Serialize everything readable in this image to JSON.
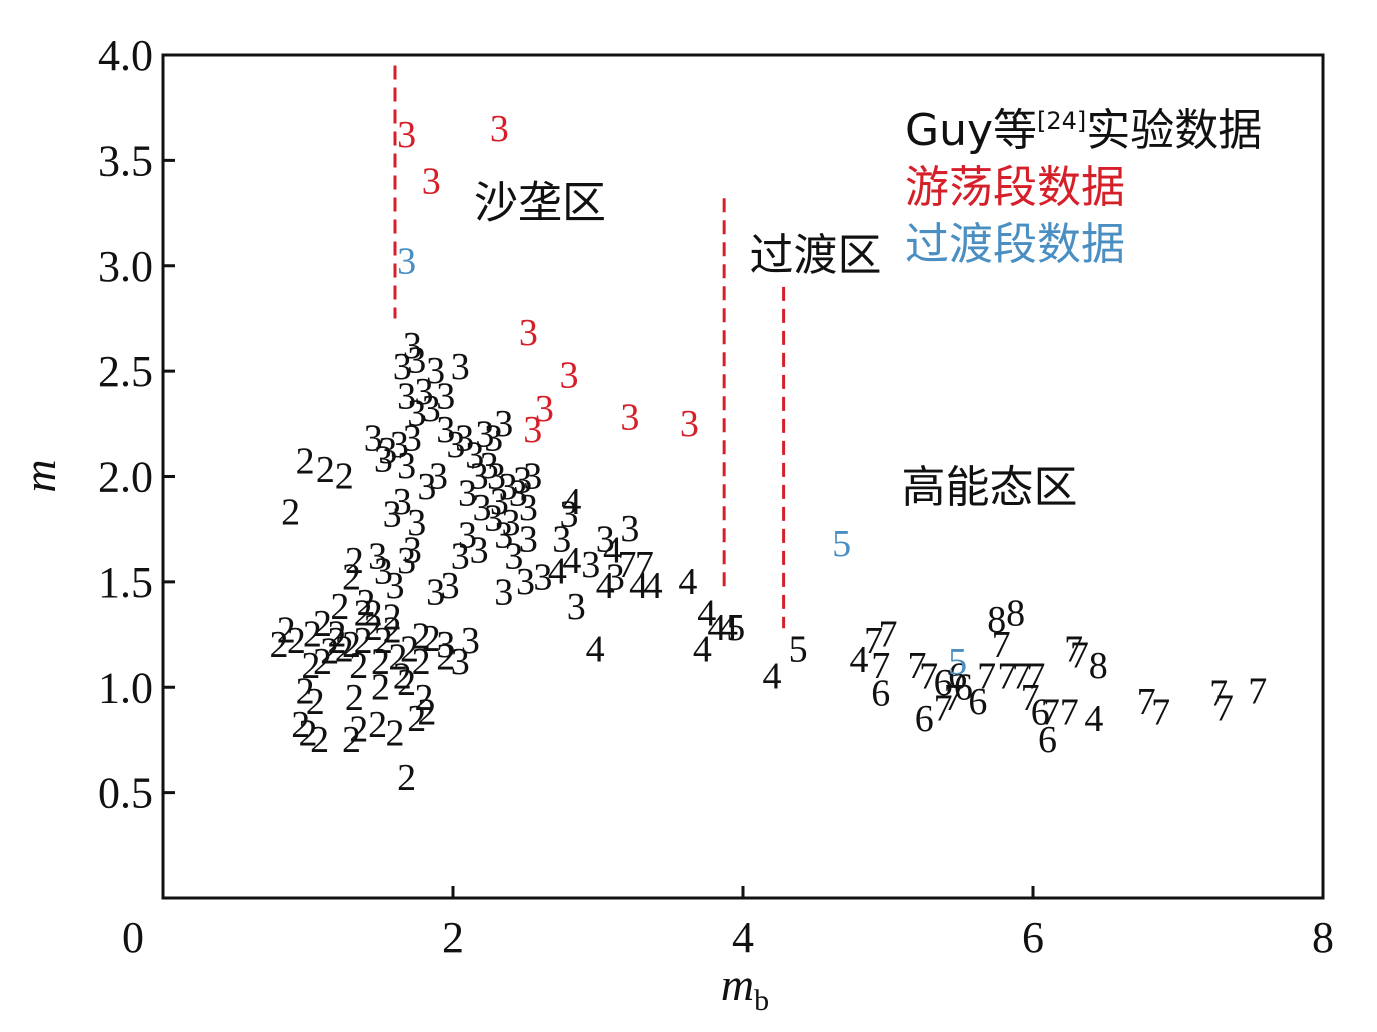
{
  "chart_data": {
    "type": "scatter",
    "xlabel": "m",
    "xlabel_sub": "b",
    "ylabel": "m",
    "xlim": [
      0,
      8
    ],
    "ylim": [
      0,
      4
    ],
    "x_ticks": [
      "0",
      "2",
      "4",
      "6",
      "8"
    ],
    "y_ticks": [
      "0.5",
      "1.0",
      "1.5",
      "2.0",
      "2.5",
      "3.0",
      "3.5",
      "4.0"
    ],
    "colors": {
      "black": "#111111",
      "red": "#d5202a",
      "blue": "#4a8ec2",
      "dash": "#d5202a"
    },
    "legend": [
      {
        "prefix": "Guy等",
        "sup": "[24]",
        "suffix": "实验数据",
        "color": "#111111"
      },
      {
        "prefix": "游荡段数据",
        "sup": "",
        "suffix": "",
        "color": "#d5202a"
      },
      {
        "prefix": "过渡段数据",
        "sup": "",
        "suffix": "",
        "color": "#4a8ec2"
      }
    ],
    "zones": [
      {
        "label": "沙垄区",
        "x": 2.6,
        "y": 3.3
      },
      {
        "label": "过渡区",
        "x": 4.5,
        "y": 3.05
      },
      {
        "label": "高能态区",
        "x": 5.7,
        "y": 1.95
      }
    ],
    "boundaries": [
      {
        "x": 1.6,
        "y_from": 2.75,
        "y_to": 3.95
      },
      {
        "x": 3.87,
        "y_from": 1.45,
        "y_to": 3.32
      },
      {
        "x": 4.28,
        "y_from": 1.28,
        "y_to": 2.9
      }
    ],
    "series": [
      {
        "name": "游荡段数据",
        "color": "#d5202a",
        "points": [
          [
            1.68,
            3.62,
            "3"
          ],
          [
            1.85,
            3.4,
            "3"
          ],
          [
            2.32,
            3.65,
            "3"
          ],
          [
            2.52,
            2.68,
            "3"
          ],
          [
            2.8,
            2.48,
            "3"
          ],
          [
            2.63,
            2.32,
            "3"
          ],
          [
            2.55,
            2.22,
            "3"
          ],
          [
            3.22,
            2.28,
            "3"
          ],
          [
            3.63,
            2.25,
            "3"
          ]
        ]
      },
      {
        "name": "过渡段数据",
        "color": "#4a8ec2",
        "points": [
          [
            1.68,
            3.02,
            "3"
          ],
          [
            4.68,
            1.68,
            "5"
          ],
          [
            5.48,
            1.12,
            "5"
          ]
        ]
      },
      {
        "name": "Guy等[24]实验数据",
        "color": "#111111",
        "points": [
          [
            0.98,
            2.07,
            "2"
          ],
          [
            0.88,
            1.83,
            "2"
          ],
          [
            1.12,
            2.03,
            "2"
          ],
          [
            1.25,
            2.0,
            "2"
          ],
          [
            1.32,
            1.6,
            "2"
          ],
          [
            1.3,
            1.52,
            "2"
          ],
          [
            1.4,
            1.4,
            "2"
          ],
          [
            1.38,
            1.35,
            "2"
          ],
          [
            0.85,
            1.27,
            "2"
          ],
          [
            0.92,
            1.22,
            "2"
          ],
          [
            1.03,
            1.25,
            "2"
          ],
          [
            1.1,
            1.3,
            "2"
          ],
          [
            1.15,
            1.17,
            "2"
          ],
          [
            1.2,
            1.25,
            "2"
          ],
          [
            1.25,
            1.18,
            "2"
          ],
          [
            1.3,
            1.2,
            "2"
          ],
          [
            1.38,
            1.22,
            "2"
          ],
          [
            1.45,
            1.28,
            "2"
          ],
          [
            1.52,
            1.22,
            "2"
          ],
          [
            1.58,
            1.27,
            "2"
          ],
          [
            1.62,
            1.14,
            "2"
          ],
          [
            1.7,
            1.18,
            "2"
          ],
          [
            1.78,
            1.24,
            "2"
          ],
          [
            0.8,
            1.2,
            "2"
          ],
          [
            1.02,
            1.1,
            "2"
          ],
          [
            1.1,
            1.12,
            "2"
          ],
          [
            1.35,
            1.1,
            "2"
          ],
          [
            1.5,
            1.12,
            "2"
          ],
          [
            1.65,
            1.05,
            "2"
          ],
          [
            1.78,
            1.12,
            "2"
          ],
          [
            1.85,
            1.23,
            "2"
          ],
          [
            1.95,
            1.14,
            "2"
          ],
          [
            0.98,
            0.98,
            "2"
          ],
          [
            1.05,
            0.93,
            "2"
          ],
          [
            1.32,
            0.95,
            "2"
          ],
          [
            1.5,
            1.0,
            "2"
          ],
          [
            1.68,
            1.02,
            "2"
          ],
          [
            1.8,
            0.95,
            "2"
          ],
          [
            1.82,
            0.88,
            "2"
          ],
          [
            0.95,
            0.82,
            "2"
          ],
          [
            1.0,
            0.78,
            "2"
          ],
          [
            1.08,
            0.75,
            "2"
          ],
          [
            1.3,
            0.75,
            "2"
          ],
          [
            1.35,
            0.8,
            "2"
          ],
          [
            1.48,
            0.82,
            "2"
          ],
          [
            1.6,
            0.78,
            "2"
          ],
          [
            1.75,
            0.85,
            "2"
          ],
          [
            1.68,
            0.57,
            "2"
          ],
          [
            1.58,
            1.33,
            "2"
          ],
          [
            1.45,
            1.35,
            "2"
          ],
          [
            1.2,
            1.22,
            "2"
          ],
          [
            1.22,
            1.38,
            "2"
          ],
          [
            1.72,
            2.62,
            "3"
          ],
          [
            1.75,
            2.55,
            "3"
          ],
          [
            1.65,
            2.52,
            "3"
          ],
          [
            1.8,
            2.4,
            "3"
          ],
          [
            1.88,
            2.5,
            "3"
          ],
          [
            2.05,
            2.52,
            "3"
          ],
          [
            1.95,
            2.38,
            "3"
          ],
          [
            1.85,
            2.32,
            "3"
          ],
          [
            1.75,
            2.3,
            "3"
          ],
          [
            1.68,
            2.38,
            "3"
          ],
          [
            1.72,
            2.18,
            "3"
          ],
          [
            1.63,
            2.15,
            "3"
          ],
          [
            1.55,
            2.12,
            "3"
          ],
          [
            1.45,
            2.18,
            "3"
          ],
          [
            1.52,
            2.08,
            "3"
          ],
          [
            1.68,
            2.05,
            "3"
          ],
          [
            1.82,
            1.95,
            "3"
          ],
          [
            1.9,
            2.0,
            "3"
          ],
          [
            1.65,
            1.88,
            "3"
          ],
          [
            1.58,
            1.82,
            "3"
          ],
          [
            1.75,
            1.78,
            "3"
          ],
          [
            1.72,
            1.65,
            "3"
          ],
          [
            1.68,
            1.6,
            "3"
          ],
          [
            1.52,
            1.55,
            "3"
          ],
          [
            1.6,
            1.48,
            "3"
          ],
          [
            1.88,
            1.45,
            "3"
          ],
          [
            1.95,
            1.2,
            "3"
          ],
          [
            2.05,
            1.12,
            "3"
          ],
          [
            2.12,
            1.22,
            "3"
          ],
          [
            1.95,
            2.22,
            "3"
          ],
          [
            2.02,
            2.15,
            "3"
          ],
          [
            2.08,
            2.18,
            "3"
          ],
          [
            2.15,
            2.1,
            "3"
          ],
          [
            2.22,
            2.2,
            "3"
          ],
          [
            2.28,
            2.18,
            "3"
          ],
          [
            2.35,
            2.25,
            "3"
          ],
          [
            2.25,
            2.05,
            "3"
          ],
          [
            2.18,
            2.0,
            "3"
          ],
          [
            2.3,
            2.0,
            "3"
          ],
          [
            2.38,
            1.95,
            "3"
          ],
          [
            2.1,
            1.92,
            "3"
          ],
          [
            2.2,
            1.85,
            "3"
          ],
          [
            2.32,
            1.88,
            "3"
          ],
          [
            2.45,
            1.92,
            "3"
          ],
          [
            2.52,
            1.85,
            "3"
          ],
          [
            2.4,
            1.78,
            "3"
          ],
          [
            2.28,
            1.8,
            "3"
          ],
          [
            2.1,
            1.72,
            "3"
          ],
          [
            2.05,
            1.62,
            "3"
          ],
          [
            2.18,
            1.65,
            "3"
          ],
          [
            2.35,
            1.72,
            "3"
          ],
          [
            2.42,
            1.62,
            "3"
          ],
          [
            2.52,
            1.7,
            "3"
          ],
          [
            2.35,
            1.45,
            "3"
          ],
          [
            2.5,
            1.5,
            "3"
          ],
          [
            2.62,
            1.52,
            "3"
          ],
          [
            2.85,
            1.38,
            "3"
          ],
          [
            2.75,
            1.7,
            "3"
          ],
          [
            2.8,
            1.82,
            "3"
          ],
          [
            2.95,
            1.58,
            "3"
          ],
          [
            3.05,
            1.7,
            "3"
          ],
          [
            3.22,
            1.75,
            "3"
          ],
          [
            3.12,
            1.52,
            "3"
          ],
          [
            2.48,
            1.98,
            "3"
          ],
          [
            2.55,
            2.0,
            "3"
          ],
          [
            1.98,
            1.48,
            "3"
          ],
          [
            1.48,
            1.62,
            "3"
          ],
          [
            2.82,
            1.88,
            "4"
          ],
          [
            2.72,
            1.55,
            "4"
          ],
          [
            2.82,
            1.6,
            "4"
          ],
          [
            3.1,
            1.65,
            "4"
          ],
          [
            3.05,
            1.48,
            "4"
          ],
          [
            3.28,
            1.48,
            "4"
          ],
          [
            3.38,
            1.48,
            "4"
          ],
          [
            3.62,
            1.5,
            "4"
          ],
          [
            2.98,
            1.18,
            "4"
          ],
          [
            3.72,
            1.18,
            "4"
          ],
          [
            3.75,
            1.35,
            "4"
          ],
          [
            3.82,
            1.28,
            "4"
          ],
          [
            3.9,
            1.28,
            "4"
          ],
          [
            4.2,
            1.05,
            "4"
          ],
          [
            4.8,
            1.13,
            "4"
          ],
          [
            6.42,
            0.85,
            "4"
          ],
          [
            3.95,
            1.28,
            "5"
          ],
          [
            4.38,
            1.18,
            "5"
          ],
          [
            4.95,
            0.97,
            "6"
          ],
          [
            5.25,
            0.85,
            "6"
          ],
          [
            5.38,
            1.02,
            "6"
          ],
          [
            5.48,
            1.05,
            "6"
          ],
          [
            5.62,
            0.93,
            "6"
          ],
          [
            6.05,
            0.88,
            "6"
          ],
          [
            6.1,
            0.75,
            "6"
          ],
          [
            5.52,
            1.0,
            "6"
          ],
          [
            3.2,
            1.58,
            "7"
          ],
          [
            3.32,
            1.58,
            "7"
          ],
          [
            4.9,
            1.22,
            "7"
          ],
          [
            5.0,
            1.25,
            "7"
          ],
          [
            4.95,
            1.1,
            "7"
          ],
          [
            5.2,
            1.1,
            "7"
          ],
          [
            5.28,
            1.05,
            "7"
          ],
          [
            5.38,
            0.9,
            "7"
          ],
          [
            5.45,
            0.95,
            "7"
          ],
          [
            5.68,
            1.05,
            "7"
          ],
          [
            5.78,
            1.2,
            "7"
          ],
          [
            5.82,
            1.05,
            "7"
          ],
          [
            5.92,
            1.05,
            "7"
          ],
          [
            5.98,
            0.95,
            "7"
          ],
          [
            6.02,
            1.05,
            "7"
          ],
          [
            6.12,
            0.88,
            "7"
          ],
          [
            6.25,
            0.88,
            "7"
          ],
          [
            6.28,
            1.18,
            "7"
          ],
          [
            6.32,
            1.15,
            "7"
          ],
          [
            6.78,
            0.93,
            "7"
          ],
          [
            6.88,
            0.88,
            "7"
          ],
          [
            7.28,
            0.97,
            "7"
          ],
          [
            7.32,
            0.9,
            "7"
          ],
          [
            7.55,
            0.98,
            "7"
          ],
          [
            5.75,
            1.32,
            "8"
          ],
          [
            5.88,
            1.35,
            "8"
          ],
          [
            6.45,
            1.1,
            "8"
          ]
        ]
      }
    ]
  }
}
